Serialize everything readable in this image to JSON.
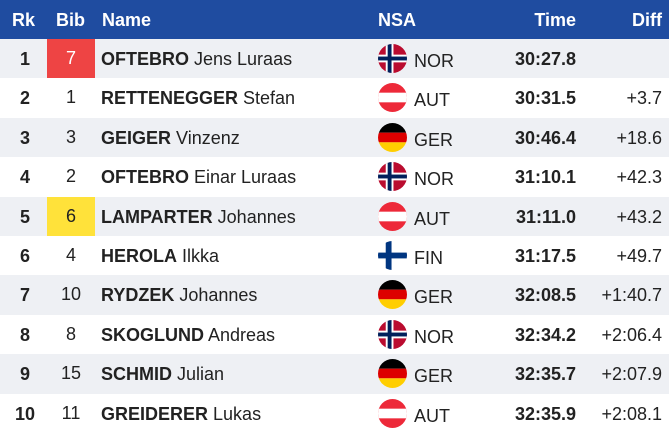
{
  "headers": {
    "rk": "Rk",
    "bib": "Bib",
    "name": "Name",
    "nsa": "NSA",
    "time": "Time",
    "diff": "Diff"
  },
  "rows": [
    {
      "rk": "1",
      "bib": "7",
      "bib_color": "#ee4444",
      "surname": "OFTEBRO",
      "first": "Jens Luraas",
      "nsa": "NOR",
      "flag": "norway-flag-icon",
      "time": "30:27.8",
      "diff": ""
    },
    {
      "rk": "2",
      "bib": "1",
      "bib_color": "",
      "surname": "RETTENEGGER",
      "first": "Stefan",
      "nsa": "AUT",
      "flag": "austria-flag-icon",
      "time": "30:31.5",
      "diff": "+3.7"
    },
    {
      "rk": "3",
      "bib": "3",
      "bib_color": "",
      "surname": "GEIGER",
      "first": "Vinzenz",
      "nsa": "GER",
      "flag": "germany-flag-icon",
      "time": "30:46.4",
      "diff": "+18.6"
    },
    {
      "rk": "4",
      "bib": "2",
      "bib_color": "",
      "surname": "OFTEBRO",
      "first": "Einar Luraas",
      "nsa": "NOR",
      "flag": "norway-flag-icon",
      "time": "31:10.1",
      "diff": "+42.3"
    },
    {
      "rk": "5",
      "bib": "6",
      "bib_color": "#ffe23a",
      "surname": "LAMPARTER",
      "first": "Johannes",
      "nsa": "AUT",
      "flag": "austria-flag-icon",
      "time": "31:11.0",
      "diff": "+43.2"
    },
    {
      "rk": "6",
      "bib": "4",
      "bib_color": "",
      "surname": "HEROLA",
      "first": "Ilkka",
      "nsa": "FIN",
      "flag": "finland-flag-icon",
      "time": "31:17.5",
      "diff": "+49.7"
    },
    {
      "rk": "7",
      "bib": "10",
      "bib_color": "",
      "surname": "RYDZEK",
      "first": "Johannes",
      "nsa": "GER",
      "flag": "germany-flag-icon",
      "time": "32:08.5",
      "diff": "+1:40.7"
    },
    {
      "rk": "8",
      "bib": "8",
      "bib_color": "",
      "surname": "SKOGLUND",
      "first": "Andreas",
      "nsa": "NOR",
      "flag": "norway-flag-icon",
      "time": "32:34.2",
      "diff": "+2:06.4"
    },
    {
      "rk": "9",
      "bib": "15",
      "bib_color": "",
      "surname": "SCHMID",
      "first": "Julian",
      "nsa": "GER",
      "flag": "germany-flag-icon",
      "time": "32:35.7",
      "diff": "+2:07.9"
    },
    {
      "rk": "10",
      "bib": "11",
      "bib_color": "",
      "surname": "GREIDERER",
      "first": "Lukas",
      "nsa": "AUT",
      "flag": "austria-flag-icon",
      "time": "32:35.9",
      "diff": "+2:08.1"
    }
  ],
  "colors": {
    "header_bg": "#1f4ca0",
    "row_alt_bg": "#eef0f4"
  }
}
